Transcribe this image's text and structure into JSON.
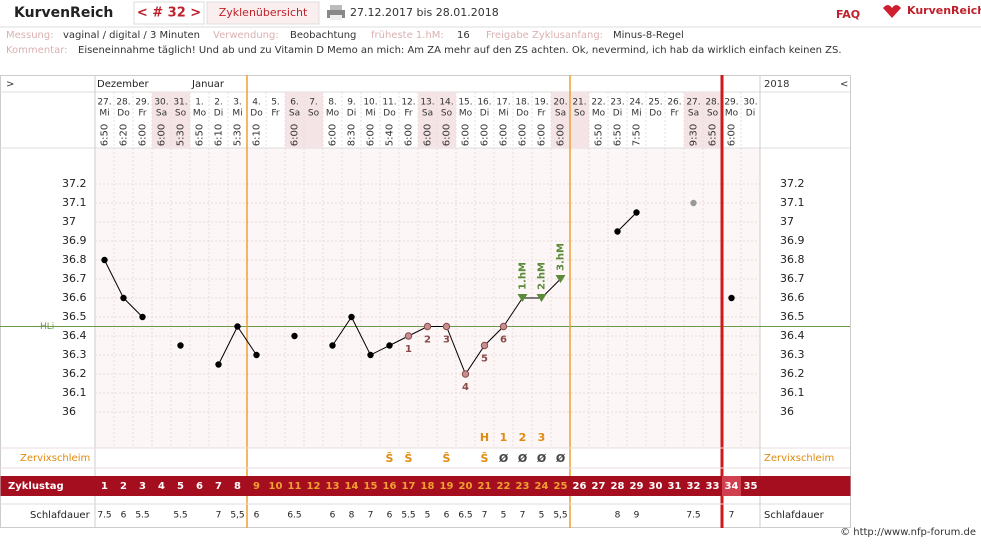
{
  "header": {
    "brand": "KurvenReich",
    "cycle_nav": "< # 32 >",
    "overview": "Zyklenübersicht",
    "range": "27.12.2017 bis 28.01.2018",
    "faq": "FAQ",
    "logo": "KurvenReich"
  },
  "info": {
    "measurement_label": "Messung:",
    "measurement": "vaginal / digital / 3 Minuten",
    "use_label": "Verwendung:",
    "use": "Beobachtung",
    "earliest_label": "früheste 1.hM:",
    "earliest": "16",
    "release_label": "Freigabe Zyklusanfang:",
    "release": "Minus-8-Regel",
    "comment_label": "Kommentar:",
    "comment": "Eiseneinnahme täglich! Und ab und zu Vitamin D  Memo an mich: Am ZA mehr auf den ZS achten. Ok, nevermind, ich hab da wirklich einfach keinen ZS."
  },
  "chart_data": {
    "type": "line",
    "nav_left": ">",
    "nav_right": "<",
    "year": "2018",
    "months": [
      "Dezember",
      null,
      null,
      null,
      null,
      "Januar",
      null,
      null,
      null,
      null,
      null,
      null,
      null,
      null,
      null,
      null,
      null,
      null,
      null,
      null,
      null,
      null,
      null,
      null,
      null,
      null,
      null,
      null,
      null,
      null,
      null,
      null,
      null,
      null,
      null
    ],
    "categories": [
      "27.",
      "28.",
      "29.",
      "30.",
      "31.",
      "1.",
      "2.",
      "3.",
      "4.",
      "5.",
      "6.",
      "7.",
      "8.",
      "9.",
      "10.",
      "11.",
      "12.",
      "13.",
      "14.",
      "15.",
      "16.",
      "17.",
      "18.",
      "19.",
      "20.",
      "21.",
      "22.",
      "23.",
      "24.",
      "25.",
      "26.",
      "27.",
      "28.",
      "29.",
      "30."
    ],
    "weekdays": [
      "Mi",
      "Do",
      "Fr",
      "Sa",
      "So",
      "Mo",
      "Di",
      "Mi",
      "Do",
      "Fr",
      "Sa",
      "So",
      "Mo",
      "Di",
      "Mi",
      "Do",
      "Fr",
      "Sa",
      "So",
      "Mo",
      "Di",
      "Mi",
      "Do",
      "Fr",
      "Sa",
      "So",
      "Mo",
      "Di",
      "Mi",
      "Do",
      "Fr",
      "Sa",
      "So",
      "Mo",
      "Di"
    ],
    "times": [
      "6:50",
      "6:20",
      "6:00",
      "6:00",
      "5:30",
      "6:50",
      "6:10",
      "5:30",
      "6:10",
      null,
      "6:00",
      null,
      "6:00",
      "8:30",
      "6:00",
      "5:40",
      "6:00",
      "6:00",
      "6:00",
      "6:00",
      "6:00",
      "6:00",
      "6:00",
      "6:00",
      "6:00",
      null,
      "6:50",
      "6:50",
      "7:50",
      null,
      null,
      "9:30",
      "6:50",
      "6:00",
      null
    ],
    "values": [
      36.8,
      36.6,
      36.5,
      null,
      36.35,
      null,
      36.25,
      36.45,
      36.3,
      null,
      36.4,
      null,
      36.35,
      36.5,
      36.3,
      36.35,
      36.4,
      36.45,
      36.45,
      36.2,
      36.35,
      36.45,
      36.6,
      36.6,
      36.7,
      null,
      null,
      36.95,
      37.05,
      null,
      null,
      null,
      null,
      36.6,
      null
    ],
    "excluded_values": [
      null,
      null,
      null,
      null,
      null,
      null,
      null,
      null,
      null,
      null,
      null,
      null,
      null,
      null,
      null,
      null,
      null,
      null,
      null,
      null,
      null,
      null,
      null,
      null,
      null,
      null,
      null,
      null,
      null,
      null,
      null,
      37.1,
      null,
      null,
      null
    ],
    "point_styles": [
      "dot",
      "dot",
      "dot",
      null,
      "dot",
      null,
      "dot",
      "dot",
      "dot",
      null,
      "dot",
      null,
      "dot",
      "dot",
      "dot",
      "dot",
      "low",
      "low",
      "low",
      "low",
      "low",
      "low",
      "high",
      "high",
      "high",
      null,
      null,
      "dot",
      "dot",
      null,
      null,
      "excluded",
      null,
      "dot",
      null
    ],
    "point_labels": [
      null,
      null,
      null,
      null,
      null,
      null,
      null,
      null,
      null,
      null,
      null,
      null,
      null,
      null,
      null,
      null,
      "1",
      "2",
      "3",
      "4",
      "5",
      "6",
      "1.hM",
      "2.hM",
      "3.hM",
      null,
      null,
      null,
      null,
      null,
      null,
      null,
      null,
      null,
      null
    ],
    "line_color": "#000000",
    "high_color": "#5a8a3a",
    "low_color": "#8a4a4a",
    "excluded_color": "#999999",
    "hli": {
      "label": "HLi",
      "value": 36.45,
      "color": "#6a9a4a"
    },
    "ylim": [
      35.8,
      37.4
    ],
    "yticks": [
      36,
      36.1,
      36.2,
      36.3,
      36.4,
      36.5,
      36.6,
      36.7,
      36.8,
      36.9,
      37,
      37.1,
      37.2
    ],
    "grid": true,
    "cervix": {
      "label": "Zervixschleim",
      "top": [
        null,
        null,
        null,
        null,
        null,
        null,
        null,
        null,
        null,
        null,
        null,
        null,
        null,
        null,
        null,
        null,
        null,
        null,
        null,
        null,
        "H",
        "1",
        "2",
        "3",
        null,
        null,
        null,
        null,
        null,
        null,
        null,
        null,
        null,
        null,
        null
      ],
      "bottom": [
        null,
        null,
        null,
        null,
        null,
        null,
        null,
        null,
        null,
        null,
        null,
        null,
        null,
        null,
        null,
        "S̃",
        "S̃",
        null,
        "S̃",
        null,
        "S̃",
        "Ø",
        "Ø",
        "Ø",
        "Ø",
        null,
        null,
        null,
        null,
        null,
        null,
        null,
        null,
        null,
        null
      ]
    },
    "cycle_days": {
      "label": "Zyklustag",
      "values": [
        1,
        2,
        3,
        4,
        5,
        6,
        7,
        8,
        9,
        10,
        11,
        12,
        13,
        14,
        15,
        16,
        17,
        18,
        19,
        20,
        21,
        22,
        23,
        24,
        25,
        26,
        27,
        28,
        29,
        30,
        31,
        32,
        33,
        34,
        35
      ]
    },
    "sleep": {
      "label": "Schlafdauer",
      "values": [
        "7.5",
        "6",
        "5.5",
        null,
        "5.5",
        null,
        "7",
        "5,5",
        "6",
        null,
        "6.5",
        null,
        "6",
        "8",
        "7",
        "6",
        "5.5",
        "5",
        "6",
        "6.5",
        "7",
        "5",
        "7",
        "5",
        "5,5",
        null,
        null,
        "8",
        "9",
        null,
        null,
        "7.5",
        null,
        "7",
        null
      ]
    }
  },
  "footer": "© http://www.nfp-forum.de"
}
